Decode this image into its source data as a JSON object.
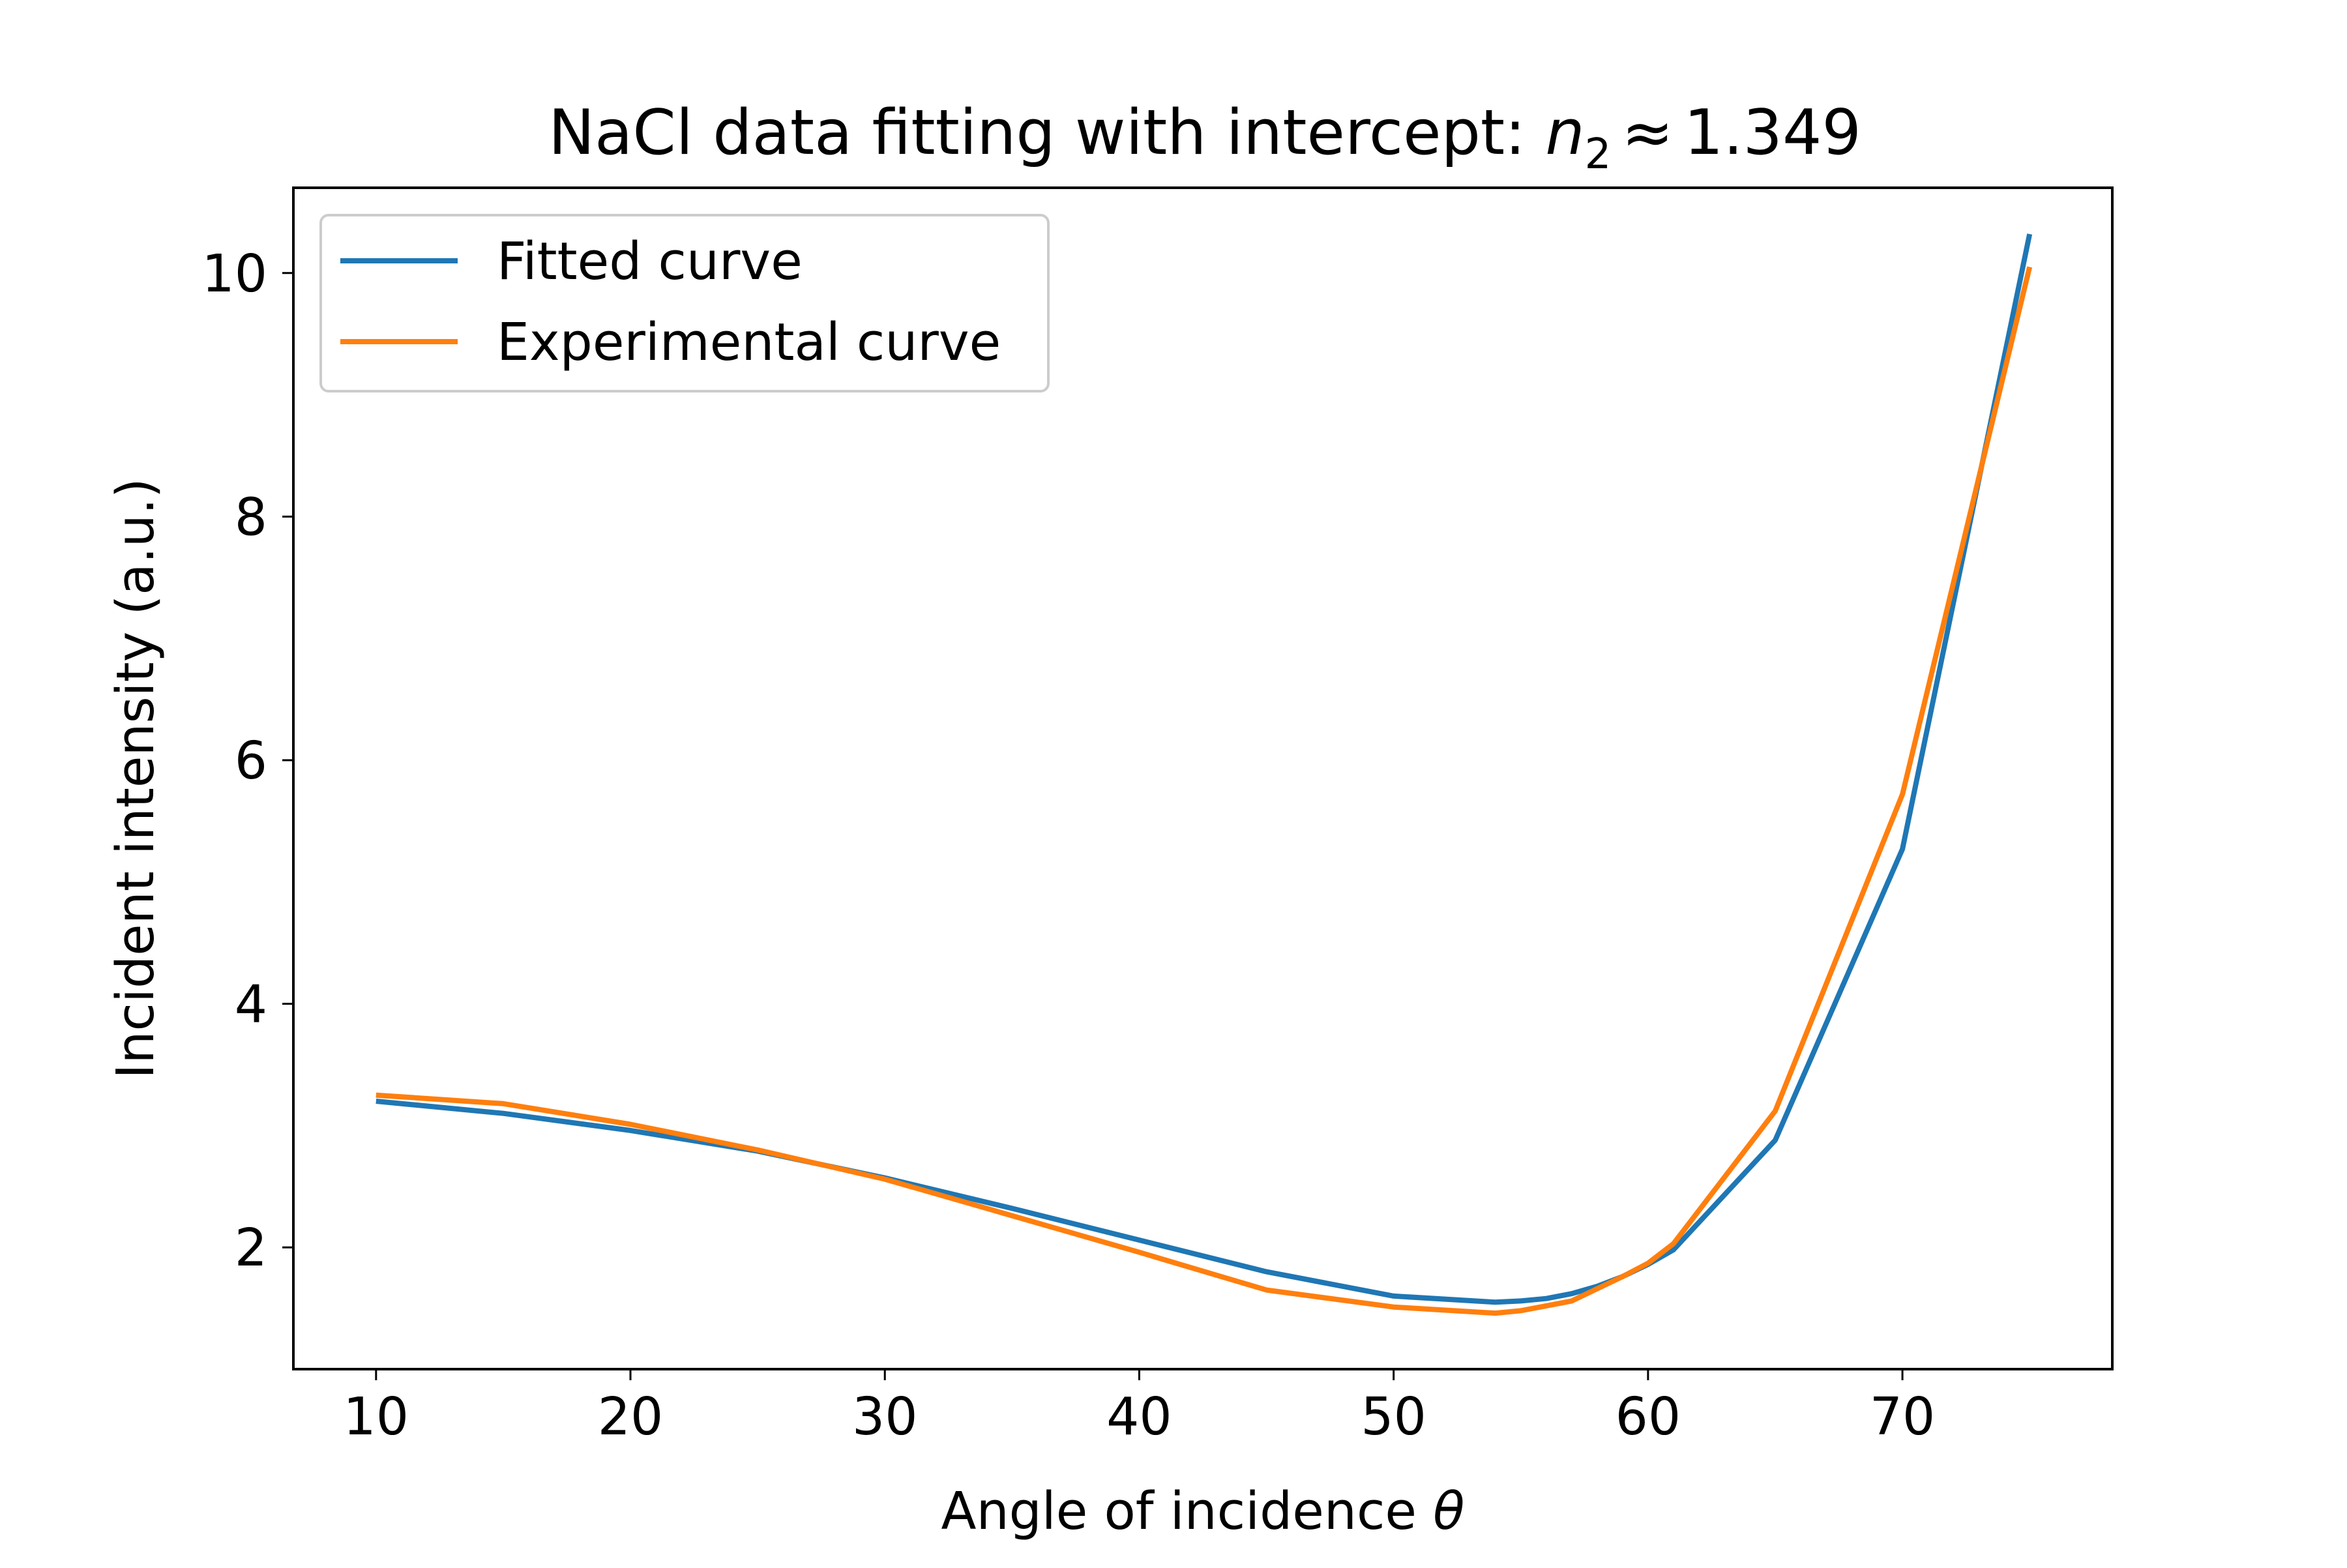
{
  "chart_data": {
    "type": "line",
    "title": "NaCl data fitting with intercept: ",
    "title_math": {
      "symbol": "n",
      "subscript": "2",
      "relation": "≈",
      "value": "1.349"
    },
    "xlabel": "Angle of incidence ",
    "xlabel_symbol": "θ",
    "ylabel": "Incident intensity (a.u.)",
    "xlim": [
      6.75,
      78.25
    ],
    "ylim": [
      1.0,
      10.7
    ],
    "xticks": [
      10,
      20,
      30,
      40,
      50,
      60,
      70
    ],
    "yticks": [
      2,
      4,
      6,
      8,
      10
    ],
    "grid": false,
    "legend_position": "top-left",
    "series": [
      {
        "name": "Fitted curve",
        "color": "#1f77b4",
        "x": [
          10,
          15,
          20,
          25,
          30,
          35,
          40,
          45,
          50,
          54,
          55,
          56,
          57,
          58,
          59,
          60,
          61,
          65,
          70,
          75
        ],
        "y": [
          3.2,
          3.1,
          2.96,
          2.79,
          2.57,
          2.32,
          2.06,
          1.8,
          1.6,
          1.55,
          1.56,
          1.58,
          1.62,
          1.68,
          1.76,
          1.86,
          1.98,
          2.88,
          5.27,
          10.32
        ]
      },
      {
        "name": "Experimental curve",
        "color": "#ff7f0e",
        "x": [
          10,
          15,
          20,
          25,
          30,
          35,
          40,
          45,
          50,
          54,
          55,
          56,
          57,
          58,
          59,
          60,
          61,
          65,
          70,
          75
        ],
        "y": [
          3.25,
          3.18,
          3.01,
          2.8,
          2.56,
          2.26,
          1.96,
          1.65,
          1.51,
          1.46,
          1.48,
          1.52,
          1.56,
          1.66,
          1.76,
          1.87,
          2.03,
          3.12,
          5.72,
          10.05
        ]
      }
    ]
  }
}
